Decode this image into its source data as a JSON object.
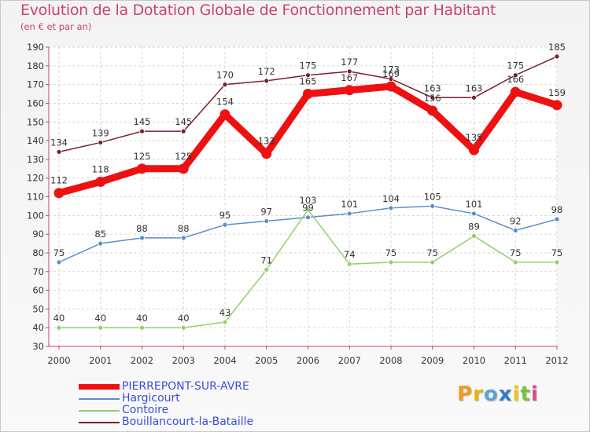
{
  "chart_data": {
    "type": "line",
    "title": "Evolution de la Dotation Globale de Fonctionnement par Habitant",
    "subtitle": "(en € et par an)",
    "xlabel": "",
    "ylabel": "",
    "ylim": [
      30,
      190
    ],
    "yticks": [
      30,
      40,
      50,
      60,
      70,
      80,
      90,
      100,
      110,
      120,
      130,
      140,
      150,
      160,
      170,
      180,
      190
    ],
    "grid": true,
    "legend_position": "bottom-left",
    "categories": [
      "2000",
      "2001",
      "2002",
      "2003",
      "2004",
      "2005",
      "2006",
      "2007",
      "2008",
      "2009",
      "2010",
      "2011",
      "2012"
    ],
    "series": [
      {
        "name": "Bouillancourt-la-Bataille",
        "color": "#7a1f2b",
        "values": [
          134,
          139,
          145,
          145,
          170,
          172,
          175,
          177,
          173,
          163,
          163,
          175,
          185
        ]
      },
      {
        "name": "Hargicourt",
        "color": "#5b8ec9",
        "values": [
          75,
          85,
          88,
          88,
          95,
          97,
          99,
          101,
          104,
          105,
          101,
          92,
          98
        ]
      },
      {
        "name": "Contoire",
        "color": "#8fd16b",
        "values": [
          40,
          40,
          40,
          40,
          43,
          71,
          103,
          74,
          75,
          75,
          89,
          75,
          75
        ]
      },
      {
        "name": "PIERREPONT-SUR-AVRE",
        "color": "#ee1111",
        "values": [
          112,
          118,
          125,
          125,
          154,
          133,
          165,
          167,
          169,
          156,
          135,
          166,
          159
        ]
      }
    ],
    "data_labels": {
      "Bouillancourt-la-Bataille": [
        "134",
        "139",
        "145",
        "145",
        "170",
        "172",
        "175",
        "177",
        "173",
        "163",
        "163",
        "175",
        "185"
      ],
      "Hargicourt": [
        "75",
        "85",
        "88",
        "88",
        "95",
        "97",
        "99",
        "101",
        "104",
        "105",
        "101",
        "92",
        "98"
      ],
      "Contoire": [
        "40",
        "40",
        "40",
        "40",
        "43",
        "71",
        "103",
        "74",
        "75",
        "75",
        "89",
        "75",
        "75"
      ],
      "PIERREPONT-SUR-AVRE": [
        "112",
        "118",
        "125",
        "125",
        "154",
        "133",
        "165",
        "167",
        "169",
        "156",
        "135",
        "166",
        "159"
      ]
    }
  },
  "legend": [
    {
      "label": "PIERREPONT-SUR-AVRE",
      "color": "#ee1111",
      "text_color": "#3b4fd6"
    },
    {
      "label": "Hargicourt",
      "color": "#5b8ec9",
      "text_color": "#3b4fd6"
    },
    {
      "label": "Contoire",
      "color": "#8fd16b",
      "text_color": "#3b4fd6"
    },
    {
      "label": "Bouillancourt-la-Bataille",
      "color": "#7a1f2b",
      "text_color": "#3b4fd6"
    }
  ],
  "logo": {
    "letters": [
      "P",
      "r",
      "o",
      "x",
      "i",
      "t",
      "i"
    ],
    "colors": [
      "#f29a1c",
      "#e8b30a",
      "#5aa5d8",
      "#2e7cc4",
      "#f2c414",
      "#7ac142",
      "#e04b8f"
    ]
  }
}
